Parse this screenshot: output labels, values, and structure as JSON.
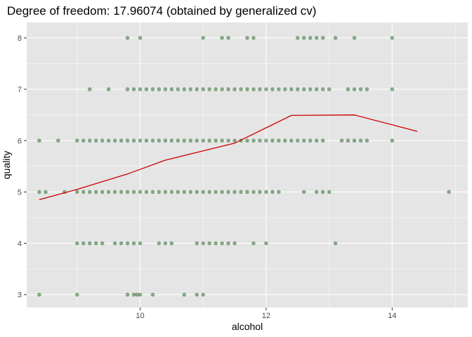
{
  "chart_data": {
    "type": "scatter",
    "title": "Degree of freedom: 17.96074 (obtained by generalized cv)",
    "xlabel": "alcohol",
    "ylabel": "quality",
    "xlim": [
      8.2,
      15.2
    ],
    "ylim": [
      2.75,
      8.3
    ],
    "x_ticks": [
      10,
      12,
      14
    ],
    "y_ticks": [
      3,
      4,
      5,
      6,
      7,
      8
    ],
    "grid": true,
    "colors": {
      "panel_background": "#e5e5e5",
      "grid": "#ffffff",
      "point": "#2f6b2f",
      "fit_line": "#cc0000"
    },
    "series": [
      {
        "type": "scatter",
        "rows": [
          {
            "quality": 8,
            "alcohol": [
              9.8,
              10.0,
              11.0,
              11.3,
              11.4,
              11.7,
              11.8,
              12.5,
              12.6,
              12.7,
              12.8,
              12.9,
              13.1,
              13.4,
              14.0
            ]
          },
          {
            "quality": 7,
            "alcohol": [
              9.2,
              9.5,
              9.8,
              9.9,
              10.0,
              10.1,
              10.2,
              10.3,
              10.4,
              10.5,
              10.6,
              10.7,
              10.8,
              10.9,
              11.0,
              11.1,
              11.2,
              11.3,
              11.4,
              11.5,
              11.6,
              11.7,
              11.8,
              11.9,
              12.0,
              12.1,
              12.2,
              12.3,
              12.4,
              12.5,
              12.6,
              12.7,
              12.8,
              12.9,
              13.0,
              13.3,
              13.4,
              13.5,
              13.6,
              14.0
            ]
          },
          {
            "quality": 6,
            "alcohol": [
              8.4,
              8.7,
              9.0,
              9.1,
              9.2,
              9.3,
              9.4,
              9.5,
              9.6,
              9.7,
              9.8,
              9.9,
              10.0,
              10.1,
              10.2,
              10.3,
              10.4,
              10.5,
              10.6,
              10.7,
              10.8,
              10.9,
              11.0,
              11.1,
              11.2,
              11.3,
              11.4,
              11.5,
              11.6,
              11.7,
              11.8,
              11.9,
              12.0,
              12.1,
              12.2,
              12.3,
              12.4,
              12.5,
              12.6,
              12.7,
              12.8,
              12.9,
              13.2,
              13.3,
              13.4,
              13.5,
              13.6,
              14.0
            ]
          },
          {
            "quality": 5,
            "alcohol": [
              8.4,
              8.5,
              8.8,
              9.0,
              9.1,
              9.2,
              9.3,
              9.4,
              9.5,
              9.6,
              9.7,
              9.8,
              9.9,
              10.0,
              10.1,
              10.2,
              10.3,
              10.4,
              10.5,
              10.6,
              10.7,
              10.8,
              10.9,
              11.0,
              11.1,
              11.2,
              11.3,
              11.4,
              11.5,
              11.6,
              11.7,
              11.8,
              11.9,
              12.0,
              12.1,
              12.2,
              12.6,
              12.8,
              12.9,
              13.0,
              14.9
            ]
          },
          {
            "quality": 4,
            "alcohol": [
              9.0,
              9.1,
              9.2,
              9.3,
              9.4,
              9.6,
              9.7,
              9.8,
              9.9,
              10.0,
              10.3,
              10.4,
              10.5,
              10.9,
              11.0,
              11.1,
              11.2,
              11.3,
              11.4,
              11.5,
              11.8,
              12.0,
              13.1
            ]
          },
          {
            "quality": 3,
            "alcohol": [
              8.4,
              9.0,
              9.8,
              9.9,
              9.95,
              10.0,
              10.2,
              10.7,
              10.9,
              11.0
            ]
          }
        ]
      },
      {
        "type": "line",
        "x": [
          8.4,
          9.0,
          9.8,
          10.4,
          11.0,
          11.5,
          12.0,
          12.4,
          13.4,
          14.4
        ],
        "y": [
          4.85,
          5.05,
          5.35,
          5.62,
          5.8,
          5.95,
          6.25,
          6.49,
          6.5,
          6.18
        ]
      }
    ]
  }
}
